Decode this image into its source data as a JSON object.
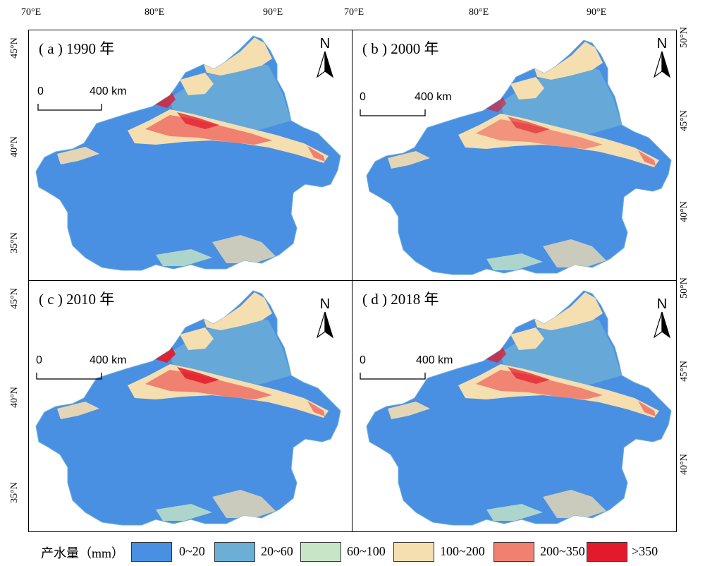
{
  "axes": {
    "lon_top_left": [
      "70°E",
      "80°E",
      "90°E"
    ],
    "lon_top_right": [
      "70°E",
      "80°E",
      "90°E"
    ],
    "lat_left_top": [
      "45°N",
      "40°N",
      "35°N"
    ],
    "lat_left_bottom": [
      "45°N",
      "40°N",
      "35°N"
    ],
    "lat_right_top": [
      "50°N",
      "45°N",
      "40°N"
    ],
    "lat_right_bottom": [
      "50°N",
      "45°N",
      "40°N"
    ]
  },
  "panels": [
    {
      "title": "( a ) 1990 年",
      "north_label": "N",
      "scale_zero": "0",
      "scale_value": "400 km"
    },
    {
      "title": "( b ) 2000 年",
      "north_label": "N",
      "scale_zero": "0",
      "scale_value": "400 km"
    },
    {
      "title": "( c ) 2010 年",
      "north_label": "N",
      "scale_zero": "0",
      "scale_value": "400 km"
    },
    {
      "title": "( d ) 2018 年",
      "north_label": "N",
      "scale_zero": "0",
      "scale_value": "400 km"
    }
  ],
  "legend": {
    "title": "产水量（mm）",
    "classes": [
      {
        "label": "0~20",
        "color": "#4a90e2"
      },
      {
        "label": "20~60",
        "color": "#6baed6"
      },
      {
        "label": "60~100",
        "color": "#c7e6c7"
      },
      {
        "label": "100~200",
        "color": "#f5deb0"
      },
      {
        "label": "200~350",
        "color": "#f08070"
      },
      {
        "label": ">350",
        "color": "#e31a2c"
      }
    ]
  },
  "colors": {
    "map_border": "#000000",
    "class_0_20": "#4a90e2",
    "class_20_60": "#6baed6",
    "class_60_100": "#c7e6c7",
    "class_100_200": "#f5deb0",
    "class_200_350": "#f08070",
    "class_gt_350": "#e31a2c"
  }
}
